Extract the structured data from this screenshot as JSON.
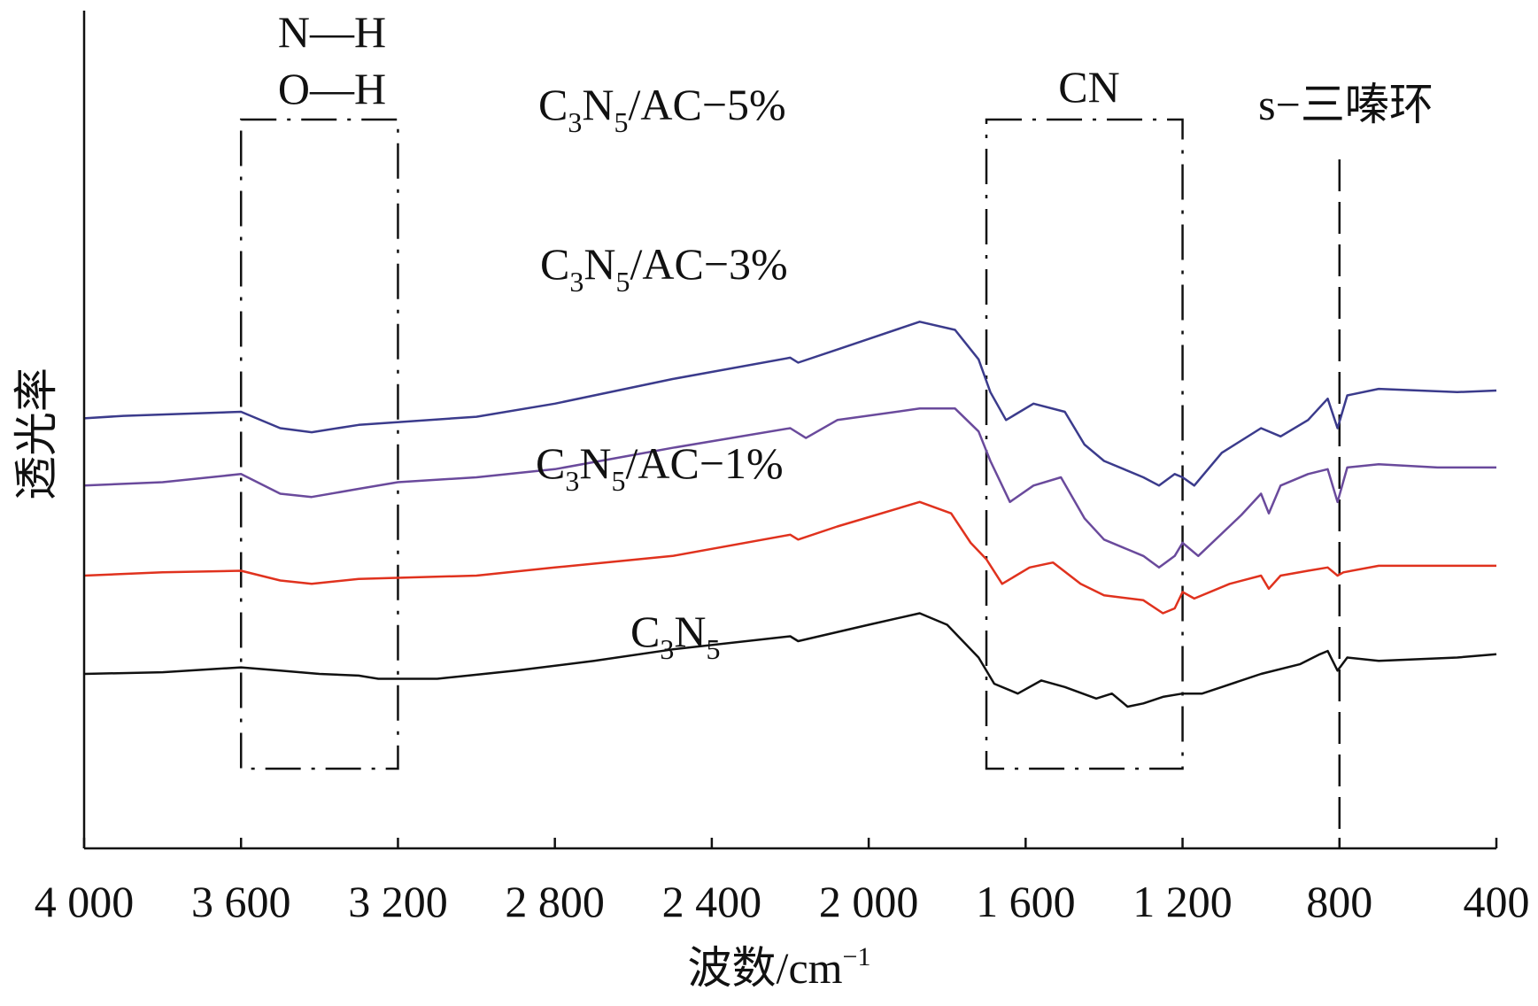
{
  "chart_data": {
    "type": "line",
    "xlabel": "波数/cm",
    "xlabel_sup": "−1",
    "ylabel": "透光率",
    "xlim": [
      4000,
      400
    ],
    "x_reversed": true,
    "x_ticks": [
      4000,
      3600,
      3200,
      2800,
      2400,
      2000,
      1600,
      1200,
      800,
      400
    ],
    "x_tick_labels": [
      "4 000",
      "3 600",
      "3 200",
      "2 800",
      "2 400",
      "2 000",
      "1 600",
      "1 200",
      "800",
      "400"
    ],
    "y_ticks_shown": false,
    "legend": "none",
    "grid": false,
    "series": [
      {
        "name": "C3N5/AC−5%",
        "color": "#3b3b8c",
        "points": [
          [
            4000,
            0.96
          ],
          [
            3900,
            0.975
          ],
          [
            3600,
            1.0
          ],
          [
            3500,
            0.9
          ],
          [
            3420,
            0.875
          ],
          [
            3300,
            0.92
          ],
          [
            3000,
            0.97
          ],
          [
            2800,
            1.05
          ],
          [
            2500,
            1.2
          ],
          [
            2200,
            1.33
          ],
          [
            2180,
            1.3
          ],
          [
            2080,
            1.38
          ],
          [
            1870,
            1.55
          ],
          [
            1780,
            1.5
          ],
          [
            1720,
            1.32
          ],
          [
            1690,
            1.12
          ],
          [
            1650,
            0.95
          ],
          [
            1580,
            1.05
          ],
          [
            1500,
            1.0
          ],
          [
            1450,
            0.8
          ],
          [
            1400,
            0.7
          ],
          [
            1300,
            0.6
          ],
          [
            1260,
            0.55
          ],
          [
            1220,
            0.62
          ],
          [
            1200,
            0.6
          ],
          [
            1170,
            0.55
          ],
          [
            1100,
            0.75
          ],
          [
            1000,
            0.9
          ],
          [
            950,
            0.85
          ],
          [
            880,
            0.95
          ],
          [
            830,
            1.08
          ],
          [
            805,
            0.9
          ],
          [
            780,
            1.1
          ],
          [
            700,
            1.14
          ],
          [
            500,
            1.12
          ],
          [
            400,
            1.13
          ]
        ]
      },
      {
        "name": "C3N5/AC−3%",
        "color": "#6a4a9c",
        "points": [
          [
            4000,
            0.55
          ],
          [
            3800,
            0.57
          ],
          [
            3600,
            0.62
          ],
          [
            3500,
            0.5
          ],
          [
            3420,
            0.48
          ],
          [
            3300,
            0.53
          ],
          [
            3200,
            0.57
          ],
          [
            3000,
            0.6
          ],
          [
            2800,
            0.65
          ],
          [
            2500,
            0.78
          ],
          [
            2200,
            0.9
          ],
          [
            2160,
            0.84
          ],
          [
            2080,
            0.95
          ],
          [
            1870,
            1.02
          ],
          [
            1780,
            1.02
          ],
          [
            1720,
            0.88
          ],
          [
            1690,
            0.7
          ],
          [
            1640,
            0.45
          ],
          [
            1580,
            0.55
          ],
          [
            1510,
            0.6
          ],
          [
            1450,
            0.35
          ],
          [
            1400,
            0.22
          ],
          [
            1300,
            0.12
          ],
          [
            1260,
            0.05
          ],
          [
            1220,
            0.12
          ],
          [
            1200,
            0.2
          ],
          [
            1160,
            0.12
          ],
          [
            1050,
            0.37
          ],
          [
            1000,
            0.5
          ],
          [
            980,
            0.38
          ],
          [
            950,
            0.55
          ],
          [
            880,
            0.62
          ],
          [
            830,
            0.65
          ],
          [
            805,
            0.45
          ],
          [
            780,
            0.66
          ],
          [
            700,
            0.68
          ],
          [
            550,
            0.66
          ],
          [
            400,
            0.66
          ]
        ]
      },
      {
        "name": "C3N5/AC−1%",
        "color": "#e0321e",
        "points": [
          [
            4000,
            0.0
          ],
          [
            3800,
            0.02
          ],
          [
            3600,
            0.03
          ],
          [
            3500,
            -0.03
          ],
          [
            3420,
            -0.05
          ],
          [
            3300,
            -0.02
          ],
          [
            3000,
            0.0
          ],
          [
            2800,
            0.05
          ],
          [
            2500,
            0.12
          ],
          [
            2200,
            0.25
          ],
          [
            2180,
            0.22
          ],
          [
            2080,
            0.3
          ],
          [
            1870,
            0.45
          ],
          [
            1790,
            0.38
          ],
          [
            1740,
            0.2
          ],
          [
            1700,
            0.1
          ],
          [
            1660,
            -0.05
          ],
          [
            1590,
            0.05
          ],
          [
            1530,
            0.08
          ],
          [
            1460,
            -0.05
          ],
          [
            1400,
            -0.12
          ],
          [
            1300,
            -0.15
          ],
          [
            1250,
            -0.23
          ],
          [
            1220,
            -0.2
          ],
          [
            1200,
            -0.1
          ],
          [
            1170,
            -0.14
          ],
          [
            1080,
            -0.05
          ],
          [
            1000,
            0.0
          ],
          [
            980,
            -0.08
          ],
          [
            950,
            0.0
          ],
          [
            880,
            0.03
          ],
          [
            830,
            0.05
          ],
          [
            805,
            0.0
          ],
          [
            790,
            0.02
          ],
          [
            700,
            0.06
          ],
          [
            400,
            0.06
          ]
        ]
      },
      {
        "name": "C3N5",
        "color": "#111111",
        "points": [
          [
            4000,
            -0.6
          ],
          [
            3800,
            -0.59
          ],
          [
            3600,
            -0.56
          ],
          [
            3500,
            -0.58
          ],
          [
            3400,
            -0.6
          ],
          [
            3300,
            -0.61
          ],
          [
            3250,
            -0.63
          ],
          [
            3100,
            -0.63
          ],
          [
            2900,
            -0.58
          ],
          [
            2700,
            -0.52
          ],
          [
            2500,
            -0.45
          ],
          [
            2200,
            -0.37
          ],
          [
            2180,
            -0.4
          ],
          [
            2000,
            -0.3
          ],
          [
            1870,
            -0.23
          ],
          [
            1800,
            -0.3
          ],
          [
            1720,
            -0.5
          ],
          [
            1680,
            -0.66
          ],
          [
            1620,
            -0.72
          ],
          [
            1560,
            -0.64
          ],
          [
            1500,
            -0.68
          ],
          [
            1420,
            -0.75
          ],
          [
            1380,
            -0.72
          ],
          [
            1340,
            -0.8
          ],
          [
            1300,
            -0.78
          ],
          [
            1250,
            -0.74
          ],
          [
            1200,
            -0.72
          ],
          [
            1150,
            -0.72
          ],
          [
            1100,
            -0.68
          ],
          [
            1000,
            -0.6
          ],
          [
            900,
            -0.54
          ],
          [
            850,
            -0.48
          ],
          [
            830,
            -0.46
          ],
          [
            805,
            -0.58
          ],
          [
            780,
            -0.5
          ],
          [
            700,
            -0.52
          ],
          [
            500,
            -0.5
          ],
          [
            400,
            -0.48
          ]
        ]
      }
    ],
    "regions": [
      {
        "label_lines": [
          "N—H",
          "O—H"
        ],
        "x_from": 3600,
        "x_to": 3200
      },
      {
        "label_lines": [
          "CN"
        ],
        "x_from": 1700,
        "x_to": 1200
      },
      {
        "label_lines": [
          "s−三嗪环"
        ],
        "x_at": 800
      }
    ]
  }
}
